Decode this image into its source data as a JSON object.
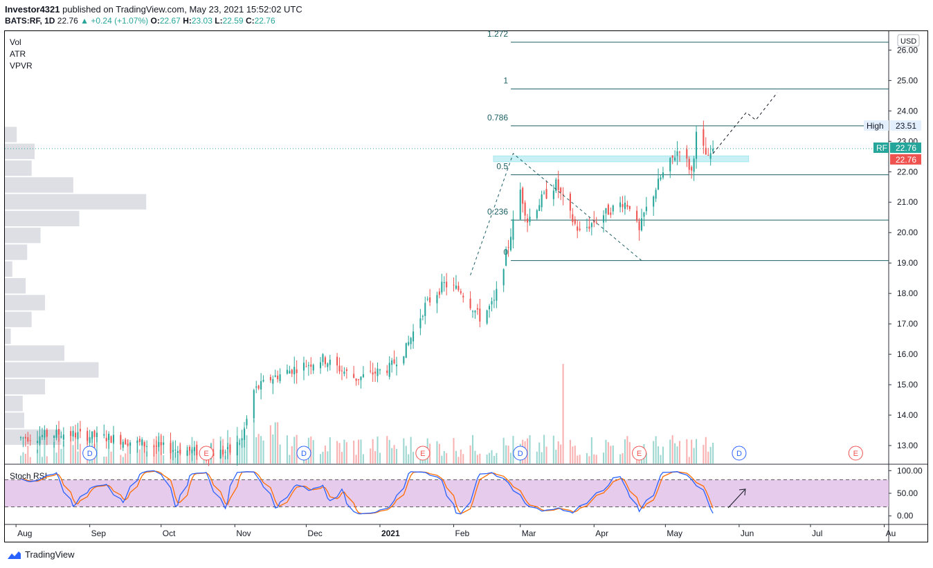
{
  "header": {
    "author": "Investor4321",
    "published_text": "published on TradingView.com, May 23, 2021 15:52:02 UTC",
    "symbol": "BATS:RF, 1D",
    "last": "22.76",
    "change": "+0.24 (+1.07%)",
    "open_label": "O:",
    "open": "22.67",
    "high_label": "H:",
    "high": "23.03",
    "low_label": "L:",
    "low": "22.59",
    "close_label": "C:",
    "close": "22.76"
  },
  "indicators": [
    "Vol",
    "ATR",
    "VPVR"
  ],
  "footer": {
    "brand": "TradingView"
  },
  "colors": {
    "up": "#26a69a",
    "down": "#ef5350",
    "fib": "#1a5e63",
    "rsi_k": "#2962ff",
    "rsi_d": "#ff6d00",
    "rsi_band": "#e1bee7"
  },
  "chart_data": {
    "type": "candlestick",
    "currency_label": "USD",
    "price_axis": {
      "ylim": [
        12.75,
        26.6
      ],
      "ticks": [
        "26.00",
        "25.00",
        "24.00",
        "23.00",
        "22.00",
        "21.00",
        "20.00",
        "19.00",
        "18.00",
        "17.00",
        "16.00",
        "15.00",
        "14.00",
        "13.00"
      ]
    },
    "x_axis_labels": [
      "Aug",
      "Sep",
      "Oct",
      "Nov",
      "Dec",
      "2021",
      "Feb",
      "Mar",
      "Apr",
      "May",
      "Jun",
      "Jul",
      "Au"
    ],
    "x_range": [
      "2020-08-03",
      "2021-08-02"
    ],
    "fib_levels": [
      {
        "label": "1.272",
        "price": 26.26
      },
      {
        "label": "1",
        "price": 24.72
      },
      {
        "label": "0.786",
        "price": 23.51
      },
      {
        "label": "0.5",
        "price": 21.9
      },
      {
        "label": "0.236",
        "price": 20.41
      },
      {
        "label": "0",
        "price": 19.08
      }
    ],
    "price_tags": [
      {
        "label": "High",
        "value": "23.51"
      },
      {
        "label": "RF",
        "value": "22.76"
      },
      {
        "label": "",
        "value": "22.76"
      }
    ],
    "resistance_zone": {
      "from_date": "2021-02-25",
      "to_date": "2021-06-05",
      "low": 22.33,
      "high": 22.52
    },
    "events": [
      {
        "date": "2020-09-01",
        "type": "D"
      },
      {
        "date": "2020-10-20",
        "type": "E"
      },
      {
        "date": "2020-11-30",
        "type": "D"
      },
      {
        "date": "2021-01-19",
        "type": "E"
      },
      {
        "date": "2021-03-01",
        "type": "D"
      },
      {
        "date": "2021-04-20",
        "type": "E"
      },
      {
        "date": "2021-06-01",
        "type": "D"
      },
      {
        "date": "2021-07-20",
        "type": "E"
      }
    ],
    "stoch_rsi": {
      "title": "Stoch RSI",
      "ylim": [
        -5,
        105
      ],
      "ticks": [
        "100.00",
        "50.00",
        "0.00"
      ],
      "bands": [
        20,
        80
      ]
    },
    "anchor_prices": [
      [
        "2020-08-03",
        13.25
      ],
      [
        "2020-08-20",
        13.4
      ],
      [
        "2020-09-10",
        13.25
      ],
      [
        "2020-09-30",
        12.95
      ],
      [
        "2020-10-20",
        12.75
      ],
      [
        "2020-10-30",
        12.8
      ],
      [
        "2020-11-04",
        13.2
      ],
      [
        "2020-11-09",
        14.8
      ],
      [
        "2020-11-16",
        15.2
      ],
      [
        "2020-11-25",
        15.5
      ],
      [
        "2020-12-08",
        15.85
      ],
      [
        "2020-12-22",
        15.2
      ],
      [
        "2021-01-05",
        15.55
      ],
      [
        "2021-01-12",
        16.2
      ],
      [
        "2021-01-20",
        17.6
      ],
      [
        "2021-01-28",
        18.3
      ],
      [
        "2021-02-04",
        18.1
      ],
      [
        "2021-02-12",
        17.2
      ],
      [
        "2021-02-18",
        17.7
      ],
      [
        "2021-02-24",
        19.6
      ],
      [
        "2021-03-01",
        21.4
      ],
      [
        "2021-03-04",
        20.4
      ],
      [
        "2021-03-10",
        21.1
      ],
      [
        "2021-03-16",
        21.6
      ],
      [
        "2021-03-23",
        20.4
      ],
      [
        "2021-03-26",
        20.0
      ],
      [
        "2021-04-05",
        20.6
      ],
      [
        "2021-04-13",
        21.0
      ],
      [
        "2021-04-16",
        20.9
      ],
      [
        "2021-04-20",
        20.0
      ],
      [
        "2021-04-22",
        20.6
      ],
      [
        "2021-04-29",
        21.8
      ],
      [
        "2021-05-07",
        22.8
      ],
      [
        "2021-05-12",
        22.0
      ],
      [
        "2021-05-14",
        23.2
      ],
      [
        "2021-05-19",
        22.4
      ],
      [
        "2021-05-21",
        22.76
      ]
    ],
    "projection": [
      [
        "2021-05-21",
        22.6
      ],
      [
        "2021-06-04",
        23.95
      ],
      [
        "2021-06-08",
        23.7
      ],
      [
        "2021-06-17",
        24.6
      ]
    ],
    "stoch_k_anchors": [
      [
        0,
        82
      ],
      [
        6,
        75
      ],
      [
        12,
        85
      ],
      [
        18,
        96
      ],
      [
        26,
        18
      ],
      [
        34,
        62
      ],
      [
        42,
        70
      ],
      [
        50,
        28
      ],
      [
        58,
        94
      ],
      [
        64,
        100
      ],
      [
        70,
        90
      ],
      [
        76,
        12
      ],
      [
        82,
        92
      ],
      [
        90,
        96
      ],
      [
        96,
        40
      ],
      [
        100,
        12
      ],
      [
        104,
        96
      ],
      [
        112,
        98
      ],
      [
        118,
        70
      ],
      [
        124,
        12
      ],
      [
        128,
        40
      ],
      [
        134,
        70
      ],
      [
        140,
        55
      ],
      [
        146,
        68
      ],
      [
        150,
        30
      ],
      [
        156,
        62
      ],
      [
        160,
        10
      ],
      [
        164,
        4
      ],
      [
        172,
        8
      ],
      [
        178,
        20
      ],
      [
        182,
        38
      ],
      [
        188,
        98
      ],
      [
        196,
        96
      ],
      [
        204,
        78
      ],
      [
        210,
        6
      ],
      [
        214,
        4
      ],
      [
        222,
        92
      ],
      [
        228,
        96
      ],
      [
        236,
        72
      ],
      [
        244,
        26
      ],
      [
        252,
        10
      ],
      [
        260,
        18
      ],
      [
        266,
        6
      ],
      [
        272,
        26
      ],
      [
        278,
        48
      ],
      [
        284,
        68
      ],
      [
        288,
        90
      ],
      [
        294,
        52
      ],
      [
        298,
        9
      ],
      [
        304,
        40
      ],
      [
        310,
        96
      ],
      [
        318,
        98
      ],
      [
        324,
        80
      ],
      [
        328,
        62
      ],
      [
        331,
        38
      ],
      [
        333,
        18
      ],
      [
        335,
        6
      ]
    ]
  }
}
